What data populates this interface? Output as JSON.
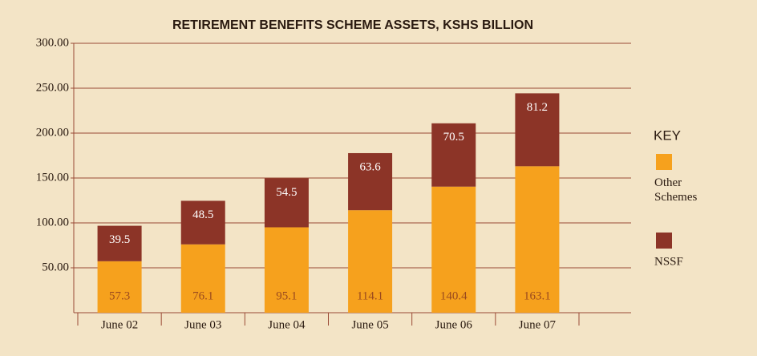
{
  "chart_data": {
    "type": "stacked_bar",
    "title": "RETIREMENT BENEFITS SCHEME ASSETS, KSHS BILLION",
    "categories": [
      "June 02",
      "June 03",
      "June 04",
      "June 05",
      "June 06",
      "June 07"
    ],
    "series": [
      {
        "name": "Other Schemes",
        "color": "#f6a11d",
        "values": [
          57.3,
          76.1,
          95.1,
          114.1,
          140.4,
          163.1
        ]
      },
      {
        "name": "NSSF",
        "color": "#8c3427",
        "values": [
          39.5,
          48.5,
          54.5,
          63.6,
          70.5,
          81.2
        ]
      }
    ],
    "ylim": [
      0,
      300
    ],
    "yticks": [
      {
        "value": 50,
        "label": "50.00"
      },
      {
        "value": 100,
        "label": "100.00"
      },
      {
        "value": 150,
        "label": "150.00"
      },
      {
        "value": 200,
        "label": "200.00"
      },
      {
        "value": 250,
        "label": "250.00"
      },
      {
        "value": 300,
        "label": "300.00"
      }
    ],
    "grid": true,
    "legend_title": "KEY",
    "legend": "right"
  }
}
